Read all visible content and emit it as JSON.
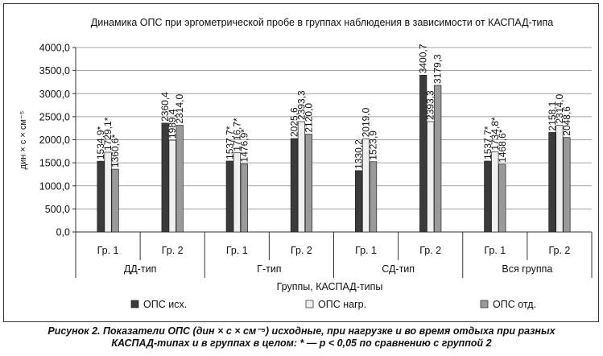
{
  "chart_data": {
    "type": "bar",
    "title": "Динамика ОПС при эргометрической пробе в группах наблюдения в зависимости от КАСПАД-типа",
    "ylabel": "дин × с × см⁻⁵",
    "xlabel": "Группы, КАСПАД-типы",
    "ylim": [
      0,
      4000
    ],
    "yticks": [
      "0,0",
      "500,0",
      "1000,0",
      "1500,0",
      "2000,0",
      "2500,0",
      "3000,0",
      "3500,0",
      "4000,0"
    ],
    "grid": true,
    "legend_position": "bottom",
    "categories": [
      "Гр. 1",
      "Гр. 2",
      "Гр. 1",
      "Гр. 2",
      "Гр. 1",
      "Гр. 2",
      "Гр. 1",
      "Гр. 2"
    ],
    "groups": [
      "ДД-тип",
      "Г-тип",
      "СД-тип",
      "Вся группа"
    ],
    "series": [
      {
        "name": "ОПС исх.",
        "color": "#3a3a3a",
        "values": [
          1534.9,
          2360.4,
          1537.7,
          2025.6,
          1330.2,
          3400.7,
          1537.7,
          2158.1
        ],
        "labels": [
          "1534,9*",
          "2360,4",
          "1537,7*",
          "2025,6",
          "1330,2",
          "3400,7",
          "1537,7*",
          "2158,1"
        ]
      },
      {
        "name": "ОПС нагр.",
        "color": "#f0f0f0",
        "values": [
          1729.1,
          1989.4,
          1716.7,
          2393.3,
          2019.0,
          2393.3,
          1734.8,
          2314.0
        ],
        "labels": [
          "1729,1*",
          "1989,4",
          "1716,7*",
          "2393,3",
          "2019,0",
          "2393,3",
          "1734,8*",
          "2314,0"
        ]
      },
      {
        "name": "ОПС отд.",
        "color": "#9a9a9a",
        "values": [
          1360.6,
          2314.0,
          1476.9,
          2120.0,
          1523.9,
          3179.3,
          1468.6,
          2048.6
        ],
        "labels": [
          "1360,6*",
          "2314,0",
          "1476,9*",
          "2120,0",
          "1523,9",
          "3179,3",
          "1468,6*",
          "2048,6"
        ]
      }
    ]
  },
  "caption": {
    "line1": "Рисунок 2. Показатели ОПС (дин × с × см⁻⁵) исходные, при нагрузке и во время отдыха при разных",
    "line2": "КАСПАД-типах и в группах в целом: * — p < 0,05 по сравнению с группой 2"
  }
}
